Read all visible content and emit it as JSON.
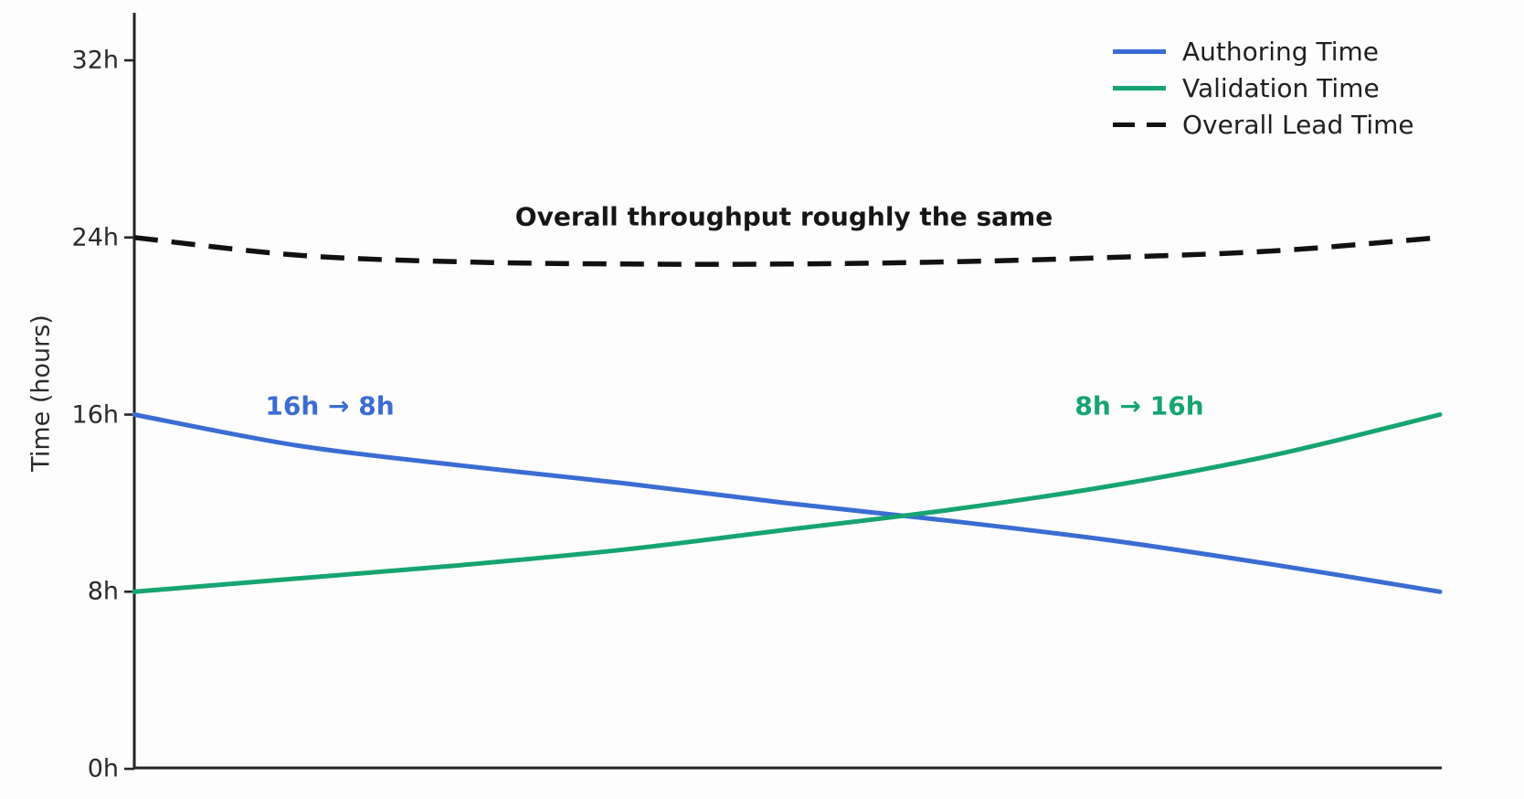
{
  "figure": {
    "ylabel": "Time (hours)",
    "annotations": {
      "authoring": {
        "text": "16h → 8h",
        "color": "#3b6cd3"
      },
      "validation": {
        "text": "8h → 16h",
        "color": "#16a471"
      },
      "overall": {
        "text": "Overall throughput roughly the same",
        "color": "#161616"
      }
    },
    "legend": {
      "items": [
        {
          "label": "Authoring Time",
          "color": "#3b6cd3",
          "style": "solid"
        },
        {
          "label": "Validation Time",
          "color": "#16a471",
          "style": "solid"
        },
        {
          "label": "Overall Lead Time",
          "color": "#111111",
          "style": "dashed"
        }
      ]
    }
  },
  "chart_data": {
    "type": "line",
    "title": "",
    "xlabel": "",
    "ylabel": "Time (hours)",
    "ylim": [
      0,
      32
    ],
    "grid": false,
    "legend_position": "upper right",
    "x_axis_tick_labels_visible": false,
    "x": [
      0,
      0.125,
      0.25,
      0.375,
      0.5,
      0.625,
      0.75,
      0.875,
      1
    ],
    "yticks": [
      {
        "value": 0,
        "label": "0h"
      },
      {
        "value": 8,
        "label": "8h"
      },
      {
        "value": 16,
        "label": "16h"
      },
      {
        "value": 24,
        "label": "24h"
      },
      {
        "value": 32,
        "label": "32h"
      }
    ],
    "series": [
      {
        "id": "authoring",
        "name": "Authoring Time",
        "color": "#3b6cd3",
        "style": "solid",
        "values": [
          16,
          14.6,
          13.7,
          12.9,
          12.0,
          11.2,
          10.3,
          9.2,
          8
        ]
      },
      {
        "id": "validation",
        "name": "Validation Time",
        "color": "#16a471",
        "style": "solid",
        "values": [
          8,
          8.6,
          9.2,
          9.9,
          10.8,
          11.7,
          12.8,
          14.2,
          16
        ]
      },
      {
        "id": "overall",
        "name": "Overall Lead Time",
        "color": "#111111",
        "style": "dashed",
        "values": [
          24,
          23.2,
          22.9,
          22.8,
          22.8,
          22.9,
          23.1,
          23.4,
          24
        ]
      }
    ],
    "annotations": [
      {
        "text": "16h → 8h",
        "series": "authoring"
      },
      {
        "text": "8h → 16h",
        "series": "validation"
      },
      {
        "text": "Overall throughput roughly the same",
        "series": "overall"
      }
    ]
  }
}
